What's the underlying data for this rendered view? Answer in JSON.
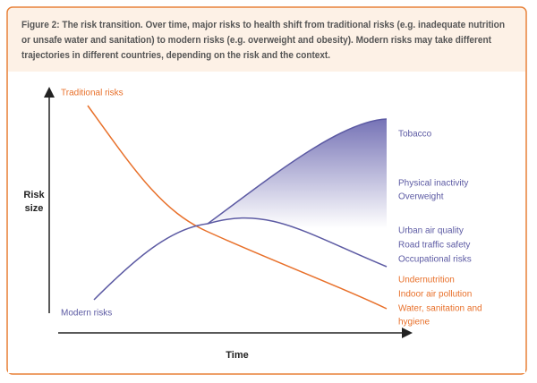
{
  "title": {
    "lines": [
      "Figure 2: The risk transition. Over time, major risks to health shift from traditional risks (e.g. inadequate nutrition",
      "or unsafe water and sanitation) to modern risks (e.g. overweight and obesity). Modern risks may take different",
      "trajectories in different countries, depending on the risk and the context."
    ]
  },
  "axes": {
    "y_label": [
      "Risk",
      "size"
    ],
    "x_label": "Time"
  },
  "curves": {
    "traditional": "Traditional risks",
    "modern": "Modern risks"
  },
  "right_labels": {
    "modern": [
      [
        "Tobacco"
      ],
      [
        "Physical inactivity",
        "Overweight"
      ],
      [
        "Urban air quality",
        "Road traffic safety",
        "Occupational risks"
      ]
    ],
    "traditional": [
      "Undernutrition",
      "Indoor air pollution",
      "Water, sanitation and",
      "hygiene"
    ]
  }
}
